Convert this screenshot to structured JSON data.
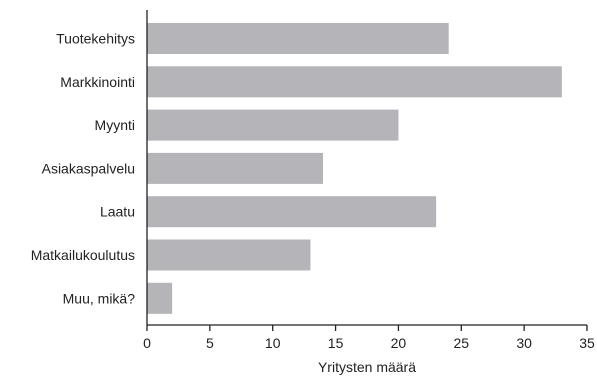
{
  "chart_data": {
    "type": "bar",
    "orientation": "horizontal",
    "categories": [
      "Tuotekehitys",
      "Markkinointi",
      "Myynti",
      "Asiakaspalvelu",
      "Laatu",
      "Matkailukoulutus",
      "Muu, mikä?"
    ],
    "values": [
      24,
      33,
      20,
      14,
      23,
      13,
      2
    ],
    "title": "",
    "xlabel": "Yritysten määrä",
    "ylabel": "",
    "xlim": [
      0,
      35
    ],
    "xticks": [
      0,
      5,
      10,
      15,
      20,
      25,
      30,
      35
    ],
    "grid": false,
    "legend": "none",
    "bar_color": "#b4b4b9"
  }
}
